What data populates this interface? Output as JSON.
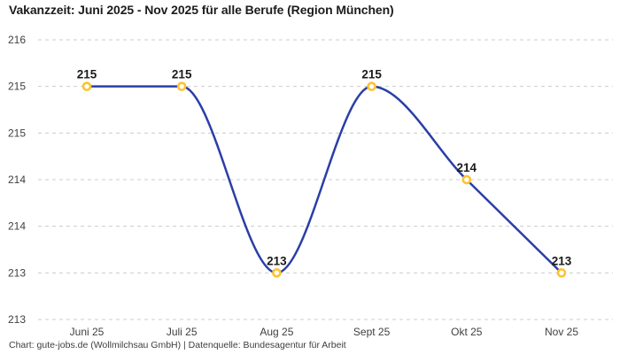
{
  "title": "Vakanzzeit: Juni 2025 - Nov 2025 für alle Berufe (Region München)",
  "footer": "Chart: gute-jobs.de (Wollmilchsau GmbH) | Datenquelle: Bundesagentur für Arbeit",
  "chart_data": {
    "type": "line",
    "title": "Vakanzzeit: Juni 2025 - Nov 2025 für alle Berufe (Region München)",
    "curve": "monotone",
    "legend": "none",
    "grid": "dashed-horizontal",
    "categories": [
      "Juni 25",
      "Juli 25",
      "Aug 25",
      "Sept 25",
      "Okt 25",
      "Nov 25"
    ],
    "values": [
      215,
      215,
      213,
      215,
      214,
      213
    ],
    "data_labels": [
      "215",
      "215",
      "213",
      "215",
      "214",
      "213"
    ],
    "ylim": [
      212.5,
      215.5
    ],
    "y_ticks": [
      {
        "value": 215.5,
        "label": "216"
      },
      {
        "value": 215.0,
        "label": "215"
      },
      {
        "value": 214.5,
        "label": "215"
      },
      {
        "value": 214.0,
        "label": "214"
      },
      {
        "value": 213.5,
        "label": "214"
      },
      {
        "value": 213.0,
        "label": "213"
      },
      {
        "value": 212.5,
        "label": "213"
      }
    ],
    "colors": {
      "line": "#2b3ea6",
      "marker_stroke": "#fdc330",
      "marker_fill": "#ffffff",
      "grid": "#cccccc",
      "data_label": "#1a1a1a",
      "axis_label": "#3f3f3f"
    }
  }
}
